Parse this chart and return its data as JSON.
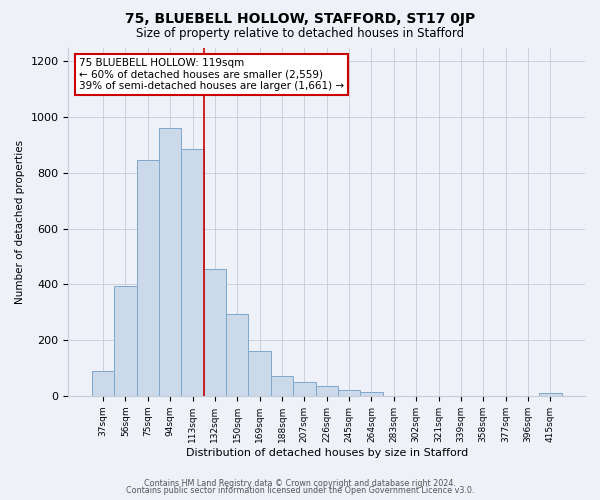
{
  "title": "75, BLUEBELL HOLLOW, STAFFORD, ST17 0JP",
  "subtitle": "Size of property relative to detached houses in Stafford",
  "xlabel": "Distribution of detached houses by size in Stafford",
  "ylabel": "Number of detached properties",
  "bar_color": "#ccd9ea",
  "bar_edge_color": "#7fa8cc",
  "bg_color": "#eef1f8",
  "categories": [
    "37sqm",
    "56sqm",
    "75sqm",
    "94sqm",
    "113sqm",
    "132sqm",
    "150sqm",
    "169sqm",
    "188sqm",
    "207sqm",
    "226sqm",
    "245sqm",
    "264sqm",
    "283sqm",
    "302sqm",
    "321sqm",
    "339sqm",
    "358sqm",
    "377sqm",
    "396sqm",
    "415sqm"
  ],
  "values": [
    90,
    395,
    845,
    960,
    885,
    455,
    295,
    160,
    70,
    50,
    35,
    20,
    15,
    0,
    0,
    0,
    0,
    0,
    0,
    0,
    10
  ],
  "annotation_title": "75 BLUEBELL HOLLOW: 119sqm",
  "annotation_line1": "← 60% of detached houses are smaller (2,559)",
  "annotation_line2": "39% of semi-detached houses are larger (1,661) →",
  "vline_position": 4.5,
  "vline_color": "#cc0000",
  "annotation_box_color": "#ffffff",
  "annotation_box_edge": "#cc0000",
  "footer1": "Contains HM Land Registry data © Crown copyright and database right 2024.",
  "footer2": "Contains public sector information licensed under the Open Government Licence v3.0.",
  "ylim": [
    0,
    1250
  ],
  "yticks": [
    0,
    200,
    400,
    600,
    800,
    1000,
    1200
  ]
}
